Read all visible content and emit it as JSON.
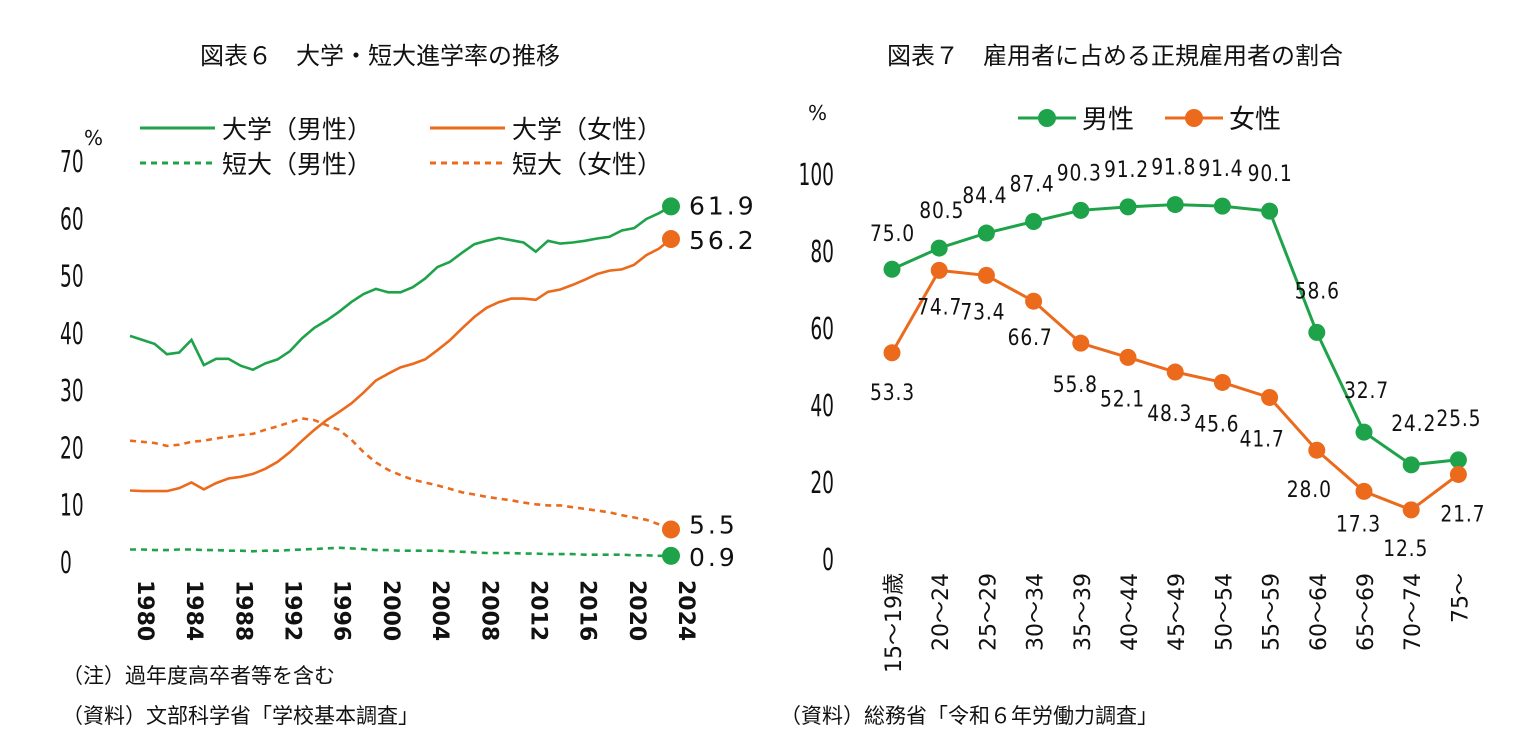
{
  "colors": {
    "green": "#1ea34a",
    "orange": "#eb6a1c",
    "text": "#111111"
  },
  "left_title": "図表６　大学・短大進学率の推移",
  "left_notes": [
    "（注）過年度高卒者等を含む",
    "（資料）文部科学省「学校基本調査」"
  ],
  "right_title": "図表７　雇用者に占める正規雇用者の割合",
  "right_notes": [
    "（資料）総務省「令和６年労働力調査」"
  ],
  "chart_data": [
    {
      "type": "line",
      "title": "図表６　大学・短大進学率の推移",
      "ylabel": "%",
      "ylim": [
        0,
        70
      ],
      "yticks": [
        "0",
        "10",
        "20",
        "30",
        "40",
        "50",
        "60",
        "70"
      ],
      "xlim": [
        1980,
        2024
      ],
      "xticks": [
        "1980",
        "1984",
        "1988",
        "1992",
        "1996",
        "2000",
        "2004",
        "2008",
        "2012",
        "2016",
        "2020",
        "2024"
      ],
      "legend": [
        "大学（男性）",
        "大学（女性）",
        "短大（男性）",
        "短大（女性）"
      ],
      "x": [
        1980,
        1981,
        1982,
        1983,
        1984,
        1985,
        1986,
        1987,
        1988,
        1989,
        1990,
        1991,
        1992,
        1993,
        1994,
        1995,
        1996,
        1997,
        1998,
        1999,
        2000,
        2001,
        2002,
        2003,
        2004,
        2005,
        2006,
        2007,
        2008,
        2009,
        2010,
        2011,
        2012,
        2013,
        2014,
        2015,
        2016,
        2017,
        2018,
        2019,
        2020,
        2021,
        2022,
        2023,
        2024
      ],
      "series": [
        {
          "name": "大学（男性）",
          "style": "solid",
          "color": "green",
          "values": [
            39.3,
            38.6,
            37.9,
            36.1,
            36.4,
            38.6,
            34.2,
            35.3,
            35.3,
            34.1,
            33.4,
            34.5,
            35.2,
            36.6,
            38.9,
            40.7,
            42.0,
            43.5,
            45.2,
            46.6,
            47.5,
            46.9,
            46.9,
            47.8,
            49.3,
            51.3,
            52.2,
            53.8,
            55.3,
            55.9,
            56.4,
            56.0,
            55.6,
            54.0,
            55.9,
            55.4,
            55.6,
            55.9,
            56.3,
            56.6,
            57.7,
            58.1,
            59.7,
            60.7,
            61.9
          ],
          "end_label": "61.9"
        },
        {
          "name": "大学（女性）",
          "style": "solid",
          "color": "orange",
          "values": [
            12.3,
            12.2,
            12.2,
            12.2,
            12.7,
            13.7,
            12.5,
            13.6,
            14.4,
            14.7,
            15.2,
            16.1,
            17.3,
            19.0,
            21.0,
            22.9,
            24.6,
            26.0,
            27.5,
            29.4,
            31.5,
            32.7,
            33.8,
            34.4,
            35.2,
            36.8,
            38.5,
            40.6,
            42.6,
            44.2,
            45.2,
            45.8,
            45.8,
            45.6,
            47.0,
            47.4,
            48.2,
            49.1,
            50.1,
            50.7,
            50.9,
            51.7,
            53.4,
            54.5,
            56.2
          ],
          "end_label": "56.2"
        },
        {
          "name": "短大（男性）",
          "style": "dashed",
          "color": "green",
          "values": [
            2.0,
            2.0,
            1.9,
            1.9,
            2.0,
            2.0,
            1.9,
            1.9,
            1.8,
            1.8,
            1.7,
            1.8,
            1.8,
            1.9,
            2.0,
            2.1,
            2.2,
            2.3,
            2.2,
            2.1,
            1.9,
            1.9,
            1.8,
            1.8,
            1.8,
            1.8,
            1.7,
            1.6,
            1.5,
            1.4,
            1.4,
            1.4,
            1.3,
            1.3,
            1.2,
            1.2,
            1.2,
            1.1,
            1.1,
            1.1,
            1.1,
            1.0,
            1.0,
            0.9,
            0.9
          ],
          "end_label": "0.9"
        },
        {
          "name": "短大（女性）",
          "style": "dashed",
          "color": "orange",
          "values": [
            21.0,
            20.8,
            20.6,
            20.1,
            20.3,
            20.8,
            21.0,
            21.4,
            21.7,
            22.0,
            22.2,
            22.9,
            23.5,
            24.2,
            24.9,
            24.6,
            23.7,
            22.9,
            21.2,
            19.0,
            17.2,
            15.9,
            15.0,
            14.2,
            13.7,
            13.2,
            12.6,
            12.0,
            11.6,
            11.2,
            10.9,
            10.6,
            10.2,
            9.9,
            9.7,
            9.7,
            9.4,
            9.1,
            8.8,
            8.5,
            8.0,
            7.6,
            7.2,
            6.4,
            5.5
          ],
          "end_label": "5.5"
        }
      ]
    },
    {
      "type": "line",
      "title": "図表７　雇用者に占める正規雇用者の割合",
      "ylabel": "%",
      "ylim": [
        0,
        100
      ],
      "yticks": [
        "0",
        "20",
        "40",
        "60",
        "80",
        "100"
      ],
      "categories": [
        "15～19歳",
        "20～24",
        "25～29",
        "30～34",
        "35～39",
        "40～44",
        "45～49",
        "50～54",
        "55～59",
        "60～64",
        "65～69",
        "70～74",
        "75～"
      ],
      "legend": [
        "男性",
        "女性"
      ],
      "series": [
        {
          "name": "男性",
          "color": "green",
          "values": [
            75.0,
            80.5,
            84.4,
            87.4,
            90.3,
            91.2,
            91.8,
            91.4,
            90.1,
            58.6,
            32.7,
            24.2,
            25.5
          ],
          "labels": [
            "75.0",
            "80.5",
            "84.4",
            "87.4",
            "90.3",
            "91.2",
            "91.8",
            "91.4",
            "90.1",
            "58.6",
            "32.7",
            "24.2",
            "25.5"
          ]
        },
        {
          "name": "女性",
          "color": "orange",
          "values": [
            53.3,
            74.7,
            73.4,
            66.7,
            55.8,
            52.1,
            48.3,
            45.6,
            41.7,
            28.0,
            17.3,
            12.5,
            21.7
          ],
          "labels": [
            "53.3",
            "74.7",
            "73.4",
            "66.7",
            "55.8",
            "52.1",
            "48.3",
            "45.6",
            "41.7",
            "28.0",
            "17.3",
            "12.5",
            "21.7"
          ]
        }
      ]
    }
  ]
}
